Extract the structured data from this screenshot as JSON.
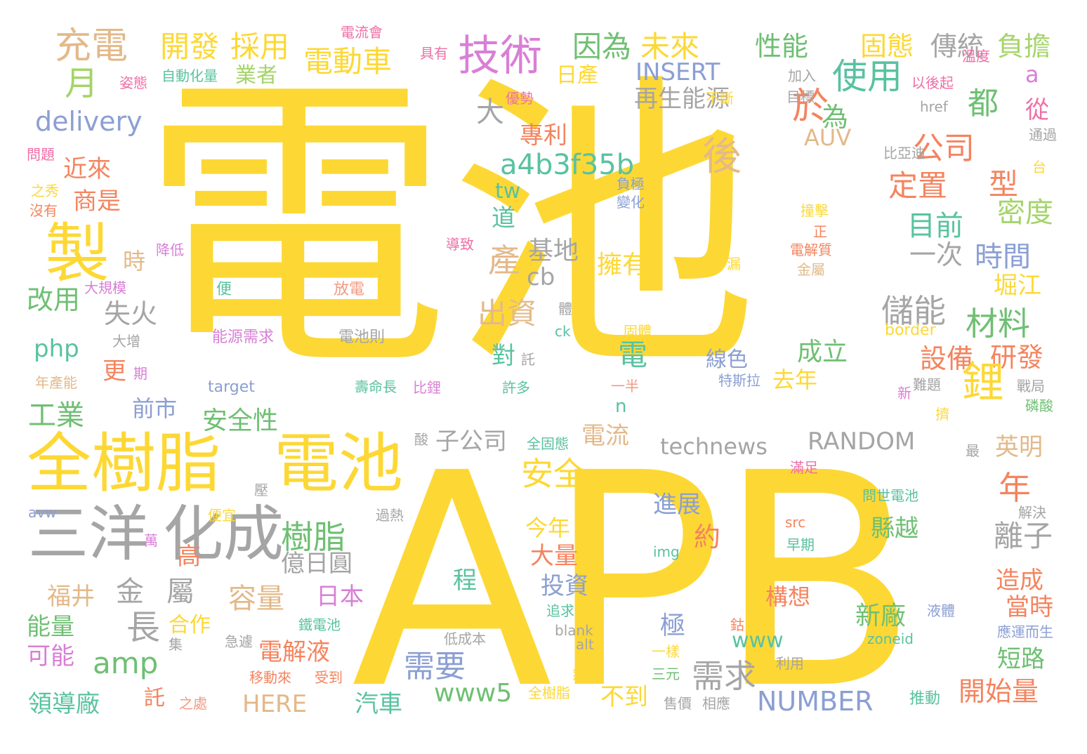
{
  "palette": {
    "yellow": "#fdd835",
    "orange": "#f4845f",
    "pink": "#ef6fa8",
    "magenta": "#d97fd6",
    "green": "#6fbf73",
    "teal": "#59c2a0",
    "blue": "#8b9fd3",
    "grey": "#a5a5a5",
    "tan": "#e3b98a",
    "lime": "#a5d46a",
    "salmon": "#f39a82"
  },
  "words": [
    {
      "text": "電池",
      "color": "yellow"
    },
    {
      "text": "APB",
      "color": "yellow"
    },
    {
      "text": "全樹脂",
      "color": "yellow"
    },
    {
      "text": "電池",
      "color": "yellow"
    },
    {
      "text": "三洋",
      "color": "grey"
    },
    {
      "text": "化成",
      "color": "grey"
    },
    {
      "text": "製",
      "color": "yellow"
    },
    {
      "text": "技術",
      "color": "magenta"
    },
    {
      "text": "充電",
      "color": "tan"
    },
    {
      "text": "月",
      "color": "lime"
    },
    {
      "text": "開發",
      "color": "yellow"
    },
    {
      "text": "採用",
      "color": "yellow"
    },
    {
      "text": "電動車",
      "color": "yellow"
    },
    {
      "text": "因為",
      "color": "green"
    },
    {
      "text": "未來",
      "color": "yellow"
    },
    {
      "text": "性能",
      "color": "green"
    },
    {
      "text": "固態",
      "color": "yellow"
    },
    {
      "text": "傳統",
      "color": "grey"
    },
    {
      "text": "負擔",
      "color": "lime"
    },
    {
      "text": "電流會",
      "color": "pink"
    },
    {
      "text": "具有",
      "color": "pink"
    },
    {
      "text": "溫度",
      "color": "pink"
    },
    {
      "text": "業者",
      "color": "lime"
    },
    {
      "text": "日產",
      "color": "yellow"
    },
    {
      "text": "INSERT",
      "color": "blue"
    },
    {
      "text": "使用",
      "color": "teal"
    },
    {
      "text": "a",
      "color": "magenta"
    },
    {
      "text": "姿態",
      "color": "pink"
    },
    {
      "text": "自動化量",
      "color": "teal"
    },
    {
      "text": "加入",
      "color": "grey"
    },
    {
      "text": "以後起",
      "color": "pink"
    },
    {
      "text": "大",
      "color": "grey"
    },
    {
      "text": "再生能源",
      "color": "grey"
    },
    {
      "text": "於",
      "color": "orange"
    },
    {
      "text": "都",
      "color": "green"
    },
    {
      "text": "從",
      "color": "pink"
    },
    {
      "text": "delivery",
      "color": "blue"
    },
    {
      "text": "優勢",
      "color": "pink"
    },
    {
      "text": "不斷",
      "color": "yellow"
    },
    {
      "text": "目標",
      "color": "grey"
    },
    {
      "text": "href",
      "color": "grey"
    },
    {
      "text": "通過",
      "color": "grey"
    },
    {
      "text": "為",
      "color": "green"
    },
    {
      "text": "專利",
      "color": "orange"
    },
    {
      "text": "AUV",
      "color": "tan"
    },
    {
      "text": "公司",
      "color": "orange"
    },
    {
      "text": "問題",
      "color": "pink"
    },
    {
      "text": "近來",
      "color": "orange"
    },
    {
      "text": "後",
      "color": "tan"
    },
    {
      "text": "a4b3f35b",
      "color": "teal"
    },
    {
      "text": "比亞迪",
      "color": "grey"
    },
    {
      "text": "台",
      "color": "yellow"
    },
    {
      "text": "之秀",
      "color": "yellow"
    },
    {
      "text": "商是",
      "color": "orange"
    },
    {
      "text": "tw",
      "color": "teal"
    },
    {
      "text": "定置",
      "color": "orange"
    },
    {
      "text": "型",
      "color": "orange"
    },
    {
      "text": "負極",
      "color": "blue"
    },
    {
      "text": "變化",
      "color": "blue"
    },
    {
      "text": "沒有",
      "color": "orange"
    },
    {
      "text": "道",
      "color": "teal"
    },
    {
      "text": "撞擊",
      "color": "yellow"
    },
    {
      "text": "密度",
      "color": "lime"
    },
    {
      "text": "目前",
      "color": "teal"
    },
    {
      "text": "正",
      "color": "orange"
    },
    {
      "text": "降低",
      "color": "magenta"
    },
    {
      "text": "導致",
      "color": "pink"
    },
    {
      "text": "電解質",
      "color": "orange"
    },
    {
      "text": "一次",
      "color": "grey"
    },
    {
      "text": "時間",
      "color": "blue"
    },
    {
      "text": "時",
      "color": "tan"
    },
    {
      "text": "產",
      "color": "tan"
    },
    {
      "text": "基地",
      "color": "grey"
    },
    {
      "text": "擁有",
      "color": "yellow"
    },
    {
      "text": "外漏",
      "color": "yellow"
    },
    {
      "text": "金屬",
      "color": "tan"
    },
    {
      "text": "改用",
      "color": "green"
    },
    {
      "text": "大規模",
      "color": "magenta"
    },
    {
      "text": "cb",
      "color": "grey"
    },
    {
      "text": "便",
      "color": "teal"
    },
    {
      "text": "放電",
      "color": "salmon"
    },
    {
      "text": "堀江",
      "color": "yellow"
    },
    {
      "text": "失火",
      "color": "grey"
    },
    {
      "text": "出資",
      "color": "tan"
    },
    {
      "text": "儲能",
      "color": "grey"
    },
    {
      "text": "材料",
      "color": "green"
    },
    {
      "text": "體",
      "color": "grey"
    },
    {
      "text": "php",
      "color": "teal"
    },
    {
      "text": "大增",
      "color": "grey"
    },
    {
      "text": "能源需求",
      "color": "magenta"
    },
    {
      "text": "電池則",
      "color": "grey"
    },
    {
      "text": "ck",
      "color": "teal"
    },
    {
      "text": "固體",
      "color": "yellow"
    },
    {
      "text": "border",
      "color": "yellow"
    },
    {
      "text": "對",
      "color": "teal"
    },
    {
      "text": "電",
      "color": "teal"
    },
    {
      "text": "成立",
      "color": "green"
    },
    {
      "text": "設備",
      "color": "orange"
    },
    {
      "text": "研發",
      "color": "orange"
    },
    {
      "text": "更",
      "color": "orange"
    },
    {
      "text": "期",
      "color": "magenta"
    },
    {
      "text": "託",
      "color": "grey"
    },
    {
      "text": "線色",
      "color": "blue"
    },
    {
      "text": "年產能",
      "color": "tan"
    },
    {
      "text": "target",
      "color": "blue"
    },
    {
      "text": "壽命長",
      "color": "teal"
    },
    {
      "text": "比鋰",
      "color": "magenta"
    },
    {
      "text": "許多",
      "color": "teal"
    },
    {
      "text": "一半",
      "color": "salmon"
    },
    {
      "text": "特斯拉",
      "color": "blue"
    },
    {
      "text": "去年",
      "color": "yellow"
    },
    {
      "text": "新",
      "color": "magenta"
    },
    {
      "text": "難題",
      "color": "grey"
    },
    {
      "text": "戰局",
      "color": "grey"
    },
    {
      "text": "磷酸",
      "color": "green"
    },
    {
      "text": "前市",
      "color": "blue"
    },
    {
      "text": "n",
      "color": "teal"
    },
    {
      "text": "鋰",
      "color": "yellow"
    },
    {
      "text": "工業",
      "color": "green"
    },
    {
      "text": "安全性",
      "color": "green"
    },
    {
      "text": "電流",
      "color": "tan"
    },
    {
      "text": "擠",
      "color": "yellow"
    },
    {
      "text": "酸",
      "color": "grey"
    },
    {
      "text": "子公司",
      "color": "grey"
    },
    {
      "text": "全固態",
      "color": "teal"
    },
    {
      "text": "technews",
      "color": "grey"
    },
    {
      "text": "RANDOM",
      "color": "grey"
    },
    {
      "text": "英明",
      "color": "tan"
    },
    {
      "text": "最",
      "color": "grey"
    },
    {
      "text": "安全",
      "color": "yellow"
    },
    {
      "text": "滿足",
      "color": "pink"
    },
    {
      "text": "壓",
      "color": "grey"
    },
    {
      "text": "年",
      "color": "orange"
    },
    {
      "text": "問世電池",
      "color": "teal"
    },
    {
      "text": "avw",
      "color": "blue"
    },
    {
      "text": "便宜",
      "color": "yellow"
    },
    {
      "text": "過熱",
      "color": "grey"
    },
    {
      "text": "進展",
      "color": "blue"
    },
    {
      "text": "解決",
      "color": "grey"
    },
    {
      "text": "樹脂",
      "color": "green"
    },
    {
      "text": "今年",
      "color": "yellow"
    },
    {
      "text": "src",
      "color": "orange"
    },
    {
      "text": "縣越",
      "color": "green"
    },
    {
      "text": "約",
      "color": "orange"
    },
    {
      "text": "離子",
      "color": "grey"
    },
    {
      "text": "萬",
      "color": "magenta"
    },
    {
      "text": "早期",
      "color": "teal"
    },
    {
      "text": "高",
      "color": "orange"
    },
    {
      "text": "大量",
      "color": "orange"
    },
    {
      "text": "img",
      "color": "teal"
    },
    {
      "text": "億日圓",
      "color": "grey"
    },
    {
      "text": "程",
      "color": "teal"
    },
    {
      "text": "投資",
      "color": "blue"
    },
    {
      "text": "造成",
      "color": "orange"
    },
    {
      "text": "金",
      "color": "grey"
    },
    {
      "text": "屬",
      "color": "grey"
    },
    {
      "text": "福井",
      "color": "tan"
    },
    {
      "text": "容量",
      "color": "tan"
    },
    {
      "text": "日本",
      "color": "magenta"
    },
    {
      "text": "構想",
      "color": "orange"
    },
    {
      "text": "當時",
      "color": "orange"
    },
    {
      "text": "長",
      "color": "grey"
    },
    {
      "text": "追求",
      "color": "teal"
    },
    {
      "text": "液體",
      "color": "blue"
    },
    {
      "text": "能量",
      "color": "green"
    },
    {
      "text": "合作",
      "color": "yellow"
    },
    {
      "text": "鐵電池",
      "color": "teal"
    },
    {
      "text": "鈷",
      "color": "orange"
    },
    {
      "text": "新廠",
      "color": "green"
    },
    {
      "text": "極",
      "color": "blue"
    },
    {
      "text": "www",
      "color": "teal"
    },
    {
      "text": "blank",
      "color": "grey"
    },
    {
      "text": "zoneid",
      "color": "teal"
    },
    {
      "text": "應運而生",
      "color": "blue"
    },
    {
      "text": "可能",
      "color": "magenta"
    },
    {
      "text": "電解液",
      "color": "orange"
    },
    {
      "text": "amp",
      "color": "green"
    },
    {
      "text": "集",
      "color": "grey"
    },
    {
      "text": "急遽",
      "color": "grey"
    },
    {
      "text": "需要",
      "color": "blue"
    },
    {
      "text": "低成本",
      "color": "grey"
    },
    {
      "text": "alt",
      "color": "grey"
    },
    {
      "text": "一樣",
      "color": "yellow"
    },
    {
      "text": "需求",
      "color": "grey"
    },
    {
      "text": "利用",
      "color": "grey"
    },
    {
      "text": "短路",
      "color": "green"
    },
    {
      "text": "三元",
      "color": "green"
    },
    {
      "text": "移動來",
      "color": "orange"
    },
    {
      "text": "受到",
      "color": "orange"
    },
    {
      "text": "無論",
      "color": "yellow"
    },
    {
      "text": "HERE",
      "color": "tan"
    },
    {
      "text": "www5",
      "color": "green"
    },
    {
      "text": "不到",
      "color": "yellow"
    },
    {
      "text": "NUMBER",
      "color": "blue"
    },
    {
      "text": "開始量",
      "color": "orange"
    },
    {
      "text": "領導廠",
      "color": "teal"
    },
    {
      "text": "託",
      "color": "orange"
    },
    {
      "text": "汽車",
      "color": "teal"
    },
    {
      "text": "全樹脂",
      "color": "yellow"
    },
    {
      "text": "推動",
      "color": "teal"
    },
    {
      "text": "之處",
      "color": "salmon"
    },
    {
      "text": "售價",
      "color": "grey"
    },
    {
      "text": "相應",
      "color": "grey"
    }
  ]
}
